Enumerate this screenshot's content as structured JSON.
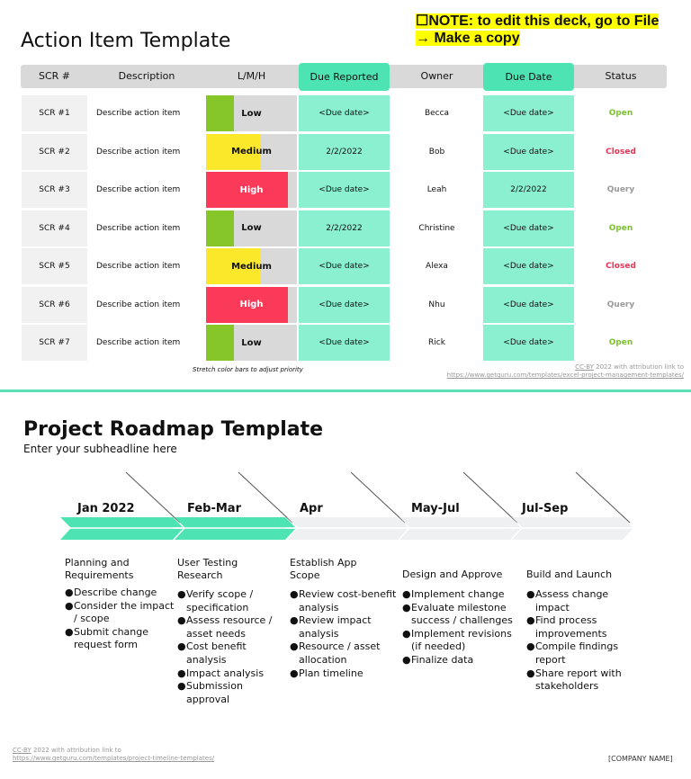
{
  "action_items": {
    "title": "Action Item Template",
    "note": "☐NOTE: to edit this deck, go to File → Make a copy",
    "columns": [
      "SCR #",
      "Description",
      "L/M/H",
      "Due Reported",
      "Owner",
      "Due Date",
      "Status"
    ],
    "rows": [
      {
        "scr": "SCR #1",
        "description": "Describe action item",
        "level": "Low",
        "level_fill": 0.31,
        "level_color": "#86c629",
        "due_reported": "<Due date>",
        "owner": "Becca",
        "due_date": "<Due date>",
        "status": "Open",
        "status_color": "#7cc22c"
      },
      {
        "scr": "SCR #2",
        "description": "Describe action item",
        "level": "Medium",
        "level_fill": 0.6,
        "level_color": "#fbe82b",
        "due_reported": "2/2/2022",
        "owner": "Bob",
        "due_date": "<Due date>",
        "status": "Closed",
        "status_color": "#ee3355"
      },
      {
        "scr": "SCR #3",
        "description": "Describe action item",
        "level": "High",
        "level_fill": 0.9,
        "level_color": "#fb3a5a",
        "due_reported": "<Due date>",
        "owner": "Leah",
        "due_date": "2/2/2022",
        "status": "Query",
        "status_color": "#9a9a9a"
      },
      {
        "scr": "SCR #4",
        "description": "Describe action item",
        "level": "Low",
        "level_fill": 0.31,
        "level_color": "#86c629",
        "due_reported": "2/2/2022",
        "owner": "Christine",
        "due_date": "<Due date>",
        "status": "Open",
        "status_color": "#7cc22c"
      },
      {
        "scr": "SCR #5",
        "description": "Describe action item",
        "level": "Medium",
        "level_fill": 0.6,
        "level_color": "#fbe82b",
        "due_reported": "<Due date>",
        "owner": "Alexa",
        "due_date": "<Due date>",
        "status": "Closed",
        "status_color": "#ee3355"
      },
      {
        "scr": "SCR #6",
        "description": "Describe action item",
        "level": "High",
        "level_fill": 0.9,
        "level_color": "#fb3a5a",
        "due_reported": "<Due date>",
        "owner": "Nhu",
        "due_date": "<Due date>",
        "status": "Query",
        "status_color": "#9a9a9a"
      },
      {
        "scr": "SCR #7",
        "description": "Describe action item",
        "level": "Low",
        "level_fill": 0.31,
        "level_color": "#86c629",
        "due_reported": "<Due date>",
        "owner": "Rick",
        "due_date": "<Due date>",
        "status": "Open",
        "status_color": "#7cc22c"
      }
    ],
    "stretch_note": "Stretch color bars to adjust priority",
    "attribution_license": "CC-BY",
    "attribution_text": " 2022 with attribution link to",
    "attribution_url": "https://www.getguru.com/templates/excel-project-management-templates/"
  },
  "roadmap": {
    "title": "Project Roadmap Template",
    "subtitle": "Enter your subheadline here",
    "phases": [
      {
        "label": "Jan 2022",
        "title": "Planning and Requirements",
        "bullets": [
          "Describe change",
          "Consider the impact / scope",
          "Submit change request form"
        ],
        "highlighted": true
      },
      {
        "label": "Feb-Mar",
        "title": "User Testing Research",
        "bullets": [
          "Verify scope / specification",
          "Assess resource / asset needs",
          "Cost benefit analysis",
          "Impact analysis",
          "Submission approval"
        ],
        "highlighted": true
      },
      {
        "label": "Apr",
        "title": "Establish App Scope",
        "bullets": [
          "Review cost-benefit analysis",
          "Review impact analysis",
          "Resource / asset allocation",
          "Plan timeline"
        ],
        "highlighted": false
      },
      {
        "label": "May-Jul",
        "title": "Design and Approve",
        "bullets": [
          "Implement change",
          "Evaluate milestone success / challenges",
          "Implement revisions (if needed)",
          "Finalize data"
        ],
        "highlighted": false
      },
      {
        "label": "Jul-Sep",
        "title": "Build and Launch",
        "bullets": [
          "Assess change impact",
          "Find process improvements",
          "Compile findings report",
          "Share report with stakeholders"
        ],
        "highlighted": false
      }
    ],
    "attribution_license": "CC-BY",
    "attribution_text": " 2022 with attribution link to",
    "attribution_url": "https://www.getguru.com/templates/project-timeline-templates/",
    "company": "[COMPANY NAME]",
    "colors": {
      "active": "#4de3b2",
      "inactive": "#eef0f2"
    }
  }
}
